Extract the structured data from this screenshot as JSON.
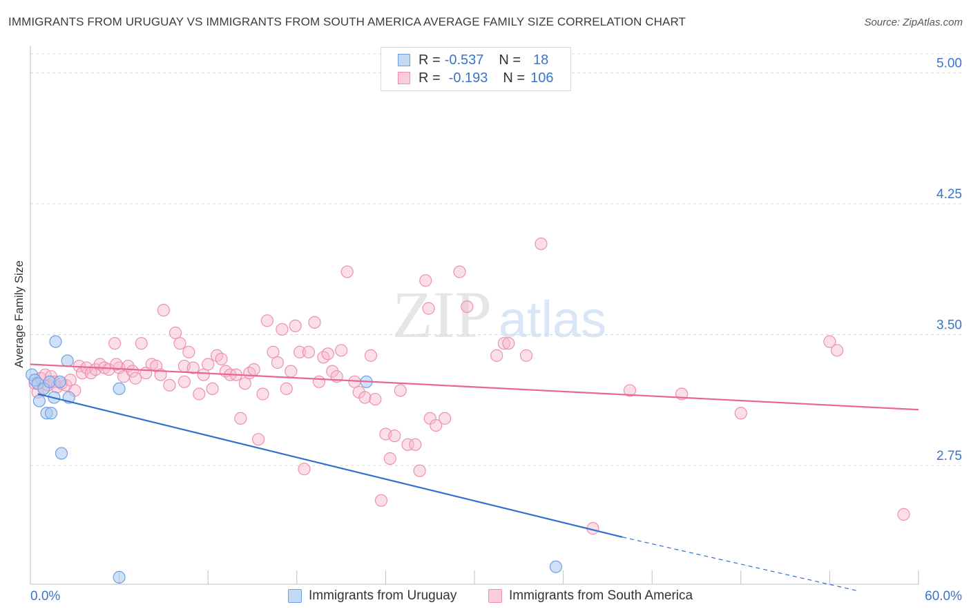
{
  "header": {
    "title": "IMMIGRANTS FROM URUGUAY VS IMMIGRANTS FROM SOUTH AMERICA AVERAGE FAMILY SIZE CORRELATION CHART",
    "source": "Source: ZipAtlas.com"
  },
  "legend_top": {
    "rows": [
      {
        "r_label": "R =",
        "r_value": "-0.537",
        "n_label": "N =",
        "n_value": "18"
      },
      {
        "r_label": "R =",
        "r_value": "-0.193",
        "n_label": "N =",
        "n_value": "106"
      }
    ]
  },
  "watermark": {
    "zip": "ZIP",
    "atlas": "atlas"
  },
  "colors": {
    "uruguay_fill": "#a9c8f0",
    "uruguay_stroke": "#6f9fe0",
    "uruguay_line": "#2f6fd0",
    "sa_fill": "#f7b9cc",
    "sa_stroke": "#ee90ad",
    "sa_line": "#e8668f",
    "tick_label": "#3a74c8",
    "grid": "#d8d8d8"
  },
  "chart_data": {
    "type": "scatter",
    "title": "IMMIGRANTS FROM URUGUAY VS IMMIGRANTS FROM SOUTH AMERICA AVERAGE FAMILY SIZE CORRELATION CHART",
    "xlabel": "",
    "ylabel": "Average Family Size",
    "xlim": [
      0,
      60
    ],
    "ylim": [
      2.07,
      5.14
    ],
    "x_tick_labels": [
      "0.0%",
      "60.0%"
    ],
    "y_ticks": [
      2.75,
      3.5,
      4.25,
      5.0
    ],
    "y_tick_labels": [
      "2.75",
      "3.50",
      "4.25",
      "5.00"
    ],
    "series": [
      {
        "name": "Immigrants from Uruguay",
        "points": [
          [
            0.1,
            3.27
          ],
          [
            0.3,
            3.24
          ],
          [
            0.5,
            3.22
          ],
          [
            0.6,
            3.12
          ],
          [
            0.9,
            3.19
          ],
          [
            1.1,
            3.05
          ],
          [
            1.3,
            3.23
          ],
          [
            1.4,
            3.05
          ],
          [
            1.6,
            3.14
          ],
          [
            1.7,
            3.46
          ],
          [
            2.0,
            3.23
          ],
          [
            2.1,
            2.82
          ],
          [
            2.5,
            3.35
          ],
          [
            2.6,
            3.14
          ],
          [
            6.0,
            3.19
          ],
          [
            6.0,
            2.11
          ],
          [
            22.7,
            3.23
          ],
          [
            35.5,
            2.17
          ]
        ],
        "trend": {
          "x": [
            0.5,
            40.0
          ],
          "y": [
            3.16,
            2.34
          ]
        },
        "trend_dashed": {
          "x": [
            40.0,
            56.0
          ],
          "y": [
            2.34,
            2.03
          ]
        }
      },
      {
        "name": "Immigrants from South America",
        "points": [
          [
            0.3,
            3.22
          ],
          [
            0.5,
            3.17
          ],
          [
            0.7,
            3.25
          ],
          [
            0.9,
            3.19
          ],
          [
            1.0,
            3.27
          ],
          [
            1.2,
            3.21
          ],
          [
            1.4,
            3.26
          ],
          [
            1.6,
            3.23
          ],
          [
            1.8,
            3.2
          ],
          [
            2.1,
            3.22
          ],
          [
            2.4,
            3.21
          ],
          [
            2.7,
            3.24
          ],
          [
            3.0,
            3.18
          ],
          [
            3.3,
            3.32
          ],
          [
            3.5,
            3.28
          ],
          [
            3.8,
            3.31
          ],
          [
            4.1,
            3.28
          ],
          [
            4.4,
            3.3
          ],
          [
            4.7,
            3.33
          ],
          [
            5.0,
            3.31
          ],
          [
            5.3,
            3.3
          ],
          [
            5.7,
            3.45
          ],
          [
            6.0,
            3.31
          ],
          [
            6.3,
            3.26
          ],
          [
            6.6,
            3.32
          ],
          [
            6.9,
            3.29
          ],
          [
            7.1,
            3.25
          ],
          [
            7.5,
            3.45
          ],
          [
            7.8,
            3.28
          ],
          [
            8.2,
            3.33
          ],
          [
            8.5,
            3.32
          ],
          [
            8.8,
            3.27
          ],
          [
            9.0,
            3.64
          ],
          [
            9.4,
            3.21
          ],
          [
            9.8,
            3.51
          ],
          [
            10.1,
            3.45
          ],
          [
            10.4,
            3.32
          ],
          [
            10.7,
            3.4
          ],
          [
            11.0,
            3.31
          ],
          [
            11.4,
            3.16
          ],
          [
            11.7,
            3.27
          ],
          [
            12.0,
            3.33
          ],
          [
            12.3,
            3.19
          ],
          [
            12.6,
            3.38
          ],
          [
            12.9,
            3.36
          ],
          [
            13.2,
            3.29
          ],
          [
            13.5,
            3.27
          ],
          [
            13.9,
            3.27
          ],
          [
            14.2,
            3.02
          ],
          [
            14.5,
            3.22
          ],
          [
            14.8,
            3.28
          ],
          [
            15.1,
            3.3
          ],
          [
            15.4,
            2.9
          ],
          [
            15.7,
            3.16
          ],
          [
            16.0,
            3.58
          ],
          [
            16.4,
            3.4
          ],
          [
            16.7,
            3.34
          ],
          [
            17.0,
            3.53
          ],
          [
            17.3,
            3.19
          ],
          [
            17.6,
            3.29
          ],
          [
            17.9,
            3.55
          ],
          [
            18.2,
            3.4
          ],
          [
            18.5,
            2.73
          ],
          [
            18.8,
            3.4
          ],
          [
            19.2,
            3.57
          ],
          [
            19.5,
            3.23
          ],
          [
            19.8,
            3.37
          ],
          [
            20.1,
            3.39
          ],
          [
            20.4,
            3.29
          ],
          [
            20.7,
            3.26
          ],
          [
            21.0,
            3.41
          ],
          [
            21.4,
            3.86
          ],
          [
            21.9,
            3.23
          ],
          [
            22.2,
            3.17
          ],
          [
            22.6,
            3.14
          ],
          [
            23.0,
            3.38
          ],
          [
            23.3,
            3.13
          ],
          [
            23.7,
            2.55
          ],
          [
            24.0,
            2.93
          ],
          [
            24.3,
            2.79
          ],
          [
            24.6,
            2.92
          ],
          [
            25.0,
            3.18
          ],
          [
            25.5,
            2.87
          ],
          [
            26.0,
            2.87
          ],
          [
            26.3,
            2.72
          ],
          [
            26.7,
            3.81
          ],
          [
            26.9,
            3.65
          ],
          [
            27.0,
            3.02
          ],
          [
            27.4,
            2.98
          ],
          [
            28.0,
            3.02
          ],
          [
            29.0,
            3.86
          ],
          [
            29.5,
            3.66
          ],
          [
            31.5,
            3.38
          ],
          [
            32.0,
            3.45
          ],
          [
            32.3,
            3.45
          ],
          [
            33.5,
            3.38
          ],
          [
            34.5,
            4.02
          ],
          [
            38.0,
            2.39
          ],
          [
            40.5,
            3.18
          ],
          [
            44.0,
            3.16
          ],
          [
            48.0,
            3.05
          ],
          [
            54.0,
            3.46
          ],
          [
            54.5,
            3.41
          ],
          [
            59.0,
            2.47
          ],
          [
            5.8,
            3.33
          ],
          [
            10.4,
            3.23
          ]
        ],
        "trend": {
          "x": [
            0.0,
            60.0
          ],
          "y": [
            3.33,
            3.07
          ]
        }
      }
    ]
  },
  "bottom_legend": {
    "uruguay_label": "Immigrants from Uruguay",
    "sa_label": "Immigrants from South America"
  }
}
